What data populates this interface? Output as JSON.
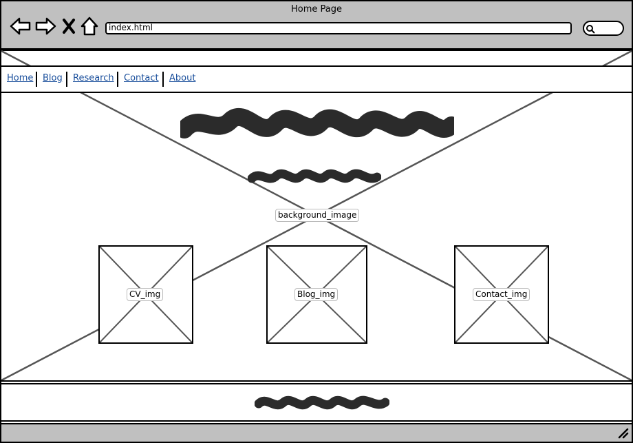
{
  "window": {
    "title": "Home Page"
  },
  "address_bar": {
    "url": "index.html"
  },
  "toolbar": {
    "icons": [
      "back-arrow-icon",
      "forward-arrow-icon",
      "close-x-icon",
      "home-icon",
      "search-icon"
    ]
  },
  "nav": {
    "links": [
      {
        "label": "Home"
      },
      {
        "label": "Blog"
      },
      {
        "label": "Research"
      },
      {
        "label": "Contact"
      },
      {
        "label": "About"
      }
    ]
  },
  "hero": {
    "background_label": "background_image"
  },
  "cards": [
    {
      "label": "CV_img"
    },
    {
      "label": "Blog_img"
    },
    {
      "label": "Contact_img"
    }
  ],
  "colors": {
    "chrome": "#c0c0c0",
    "link": "#1a4f9c",
    "scribble": "#2b2b2b",
    "placeholder_line": "#555555"
  }
}
